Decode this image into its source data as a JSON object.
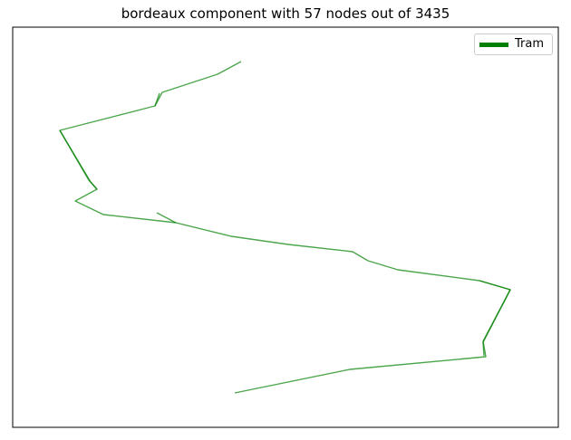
{
  "chart_data": {
    "type": "line",
    "title": "bordeaux component with 57 nodes out of 3435",
    "xlabel": "",
    "ylabel": "",
    "grid": false,
    "axes_ticks": false,
    "legend": {
      "placement": "top-right",
      "entries": [
        {
          "label": "Tram",
          "color": "#008000"
        }
      ]
    },
    "series": [
      {
        "name": "Tram",
        "color": "#008000",
        "segments": [
          [
            [
              266,
              68
            ],
            [
              240,
              82
            ],
            [
              179,
              102
            ],
            [
              171,
              117
            ],
            [
              66,
              144
            ],
            [
              100,
              201
            ],
            [
              107,
              209
            ],
            [
              83,
              222
            ],
            [
              114,
              237
            ],
            [
              194,
              246
            ],
            [
              255,
              261
            ],
            [
              318,
              270
            ],
            [
              389,
              278
            ],
            [
              406,
              288
            ],
            [
              439,
              298
            ],
            [
              529,
              310
            ],
            [
              563,
              320
            ],
            [
              533,
              377
            ],
            [
              536,
              394
            ],
            [
              386,
              408
            ],
            [
              259,
              434
            ]
          ],
          [
            [
              173,
              235
            ],
            [
              194,
              246
            ]
          ],
          [
            [
              176,
              103
            ],
            [
              171,
              117
            ]
          ],
          [
            [
              66,
              144
            ],
            [
              98,
              199
            ],
            [
              107,
              209
            ]
          ],
          [
            [
              529,
              310
            ],
            [
              563,
              320
            ],
            [
              533,
              378
            ],
            [
              534,
              393
            ]
          ]
        ]
      }
    ]
  }
}
